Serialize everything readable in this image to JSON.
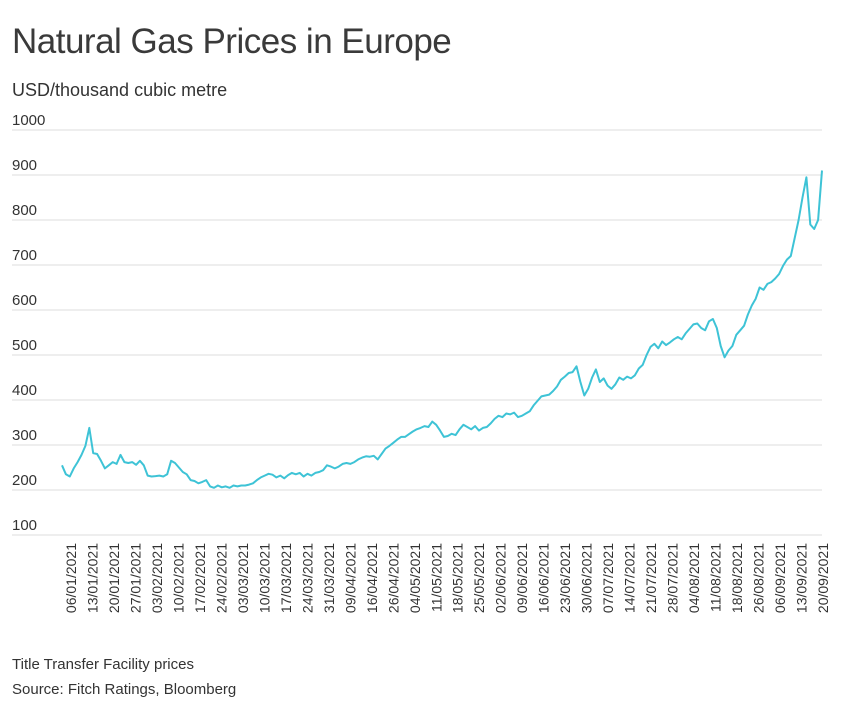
{
  "title": "Natural Gas Prices in Europe",
  "unit_label": "USD/thousand cubic metre",
  "footnote": "Title Transfer Facility prices",
  "source": "Source: Fitch Ratings, Bloomberg",
  "colors": {
    "line": "#3ec3d6",
    "grid": "#dddddd",
    "text": "#333333"
  },
  "chart_data": {
    "type": "line",
    "title": "Natural Gas Prices in Europe",
    "ylabel": "USD/thousand cubic metre",
    "xlabel": "",
    "ylim": [
      100,
      1000
    ],
    "yticks": [
      100,
      200,
      300,
      400,
      500,
      600,
      700,
      800,
      900,
      1000
    ],
    "grid": true,
    "legend": "none",
    "x_labels": [
      "06/01/2021",
      "13/01/2021",
      "20/01/2021",
      "27/01/2021",
      "03/02/2021",
      "10/02/2021",
      "17/02/2021",
      "24/02/2021",
      "03/03/2021",
      "10/03/2021",
      "17/03/2021",
      "24/03/2021",
      "31/03/2021",
      "09/04/2021",
      "16/04/2021",
      "26/04/2021",
      "04/05/2021",
      "11/05/2021",
      "18/05/2021",
      "25/05/2021",
      "02/06/2021",
      "09/06/2021",
      "16/06/2021",
      "23/06/2021",
      "30/06/2021",
      "07/07/2021",
      "14/07/2021",
      "21/07/2021",
      "28/07/2021",
      "04/08/2021",
      "11/08/2021",
      "18/08/2021",
      "26/08/2021",
      "06/09/2021",
      "13/09/2021",
      "20/09/2021"
    ],
    "series": [
      {
        "values": [
          255,
          235,
          230,
          248,
          262,
          278,
          298,
          338,
          282,
          280,
          265,
          248,
          255,
          262,
          258,
          278,
          262,
          260,
          262,
          256,
          265,
          255,
          232,
          230,
          231,
          232,
          230,
          235,
          265,
          260,
          250,
          240,
          235,
          222,
          220,
          215,
          218,
          222,
          208,
          205,
          210,
          206,
          208,
          205,
          210,
          208,
          210,
          210,
          212,
          215,
          222,
          228,
          232,
          236,
          234,
          228,
          232,
          226,
          233,
          238,
          235,
          238,
          230,
          236,
          232,
          238,
          240,
          244,
          255,
          252,
          248,
          252,
          258,
          260,
          258,
          262,
          268,
          272,
          275,
          274,
          276,
          268,
          280,
          292,
          298,
          305,
          312,
          318,
          318,
          324,
          330,
          335,
          338,
          342,
          340,
          352,
          345,
          332,
          318,
          320,
          325,
          322,
          335,
          345,
          340,
          335,
          342,
          332,
          338,
          340,
          348,
          358,
          365,
          362,
          370,
          368,
          372,
          362,
          365,
          370,
          375,
          388,
          398,
          408,
          410,
          412,
          420,
          430,
          445,
          452,
          460,
          462,
          475,
          440,
          410,
          425,
          450,
          468,
          440,
          448,
          432,
          425,
          435,
          450,
          445,
          452,
          448,
          455,
          470,
          478,
          500,
          518,
          525,
          515,
          530,
          522,
          528,
          535,
          540,
          535,
          548,
          558,
          568,
          570,
          560,
          555,
          575,
          580,
          560,
          520,
          495,
          510,
          520,
          545,
          555,
          565,
          590,
          610,
          625,
          650,
          645,
          658,
          662,
          670,
          680,
          698,
          712,
          720,
          760,
          800,
          850,
          895,
          790,
          780,
          800,
          910
        ]
      }
    ]
  }
}
